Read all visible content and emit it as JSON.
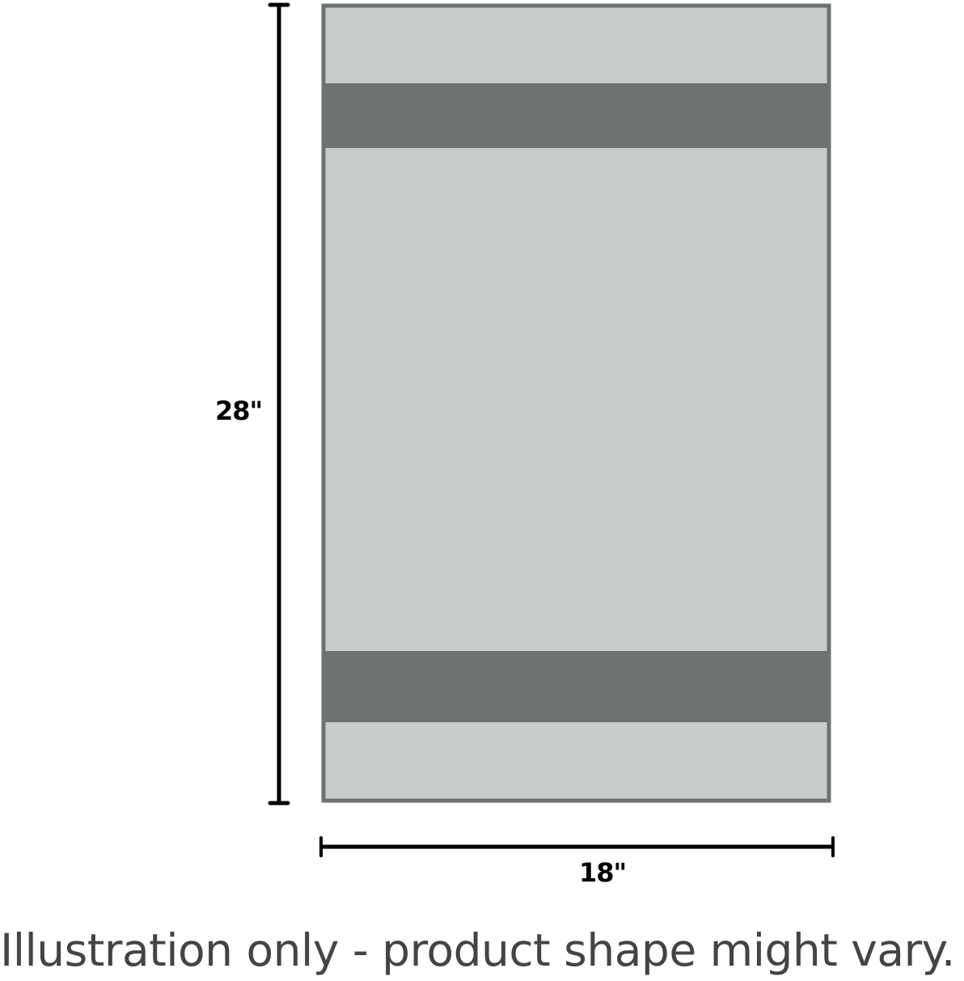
{
  "diagram": {
    "height_label": "28\"",
    "width_label": "18\"",
    "caption": "Illustration only - product shape might vary.",
    "colors": {
      "towel_fill": "#c8cccc",
      "towel_border": "#6f7272",
      "band": "#6f7272",
      "dimension_line": "#000000"
    }
  }
}
